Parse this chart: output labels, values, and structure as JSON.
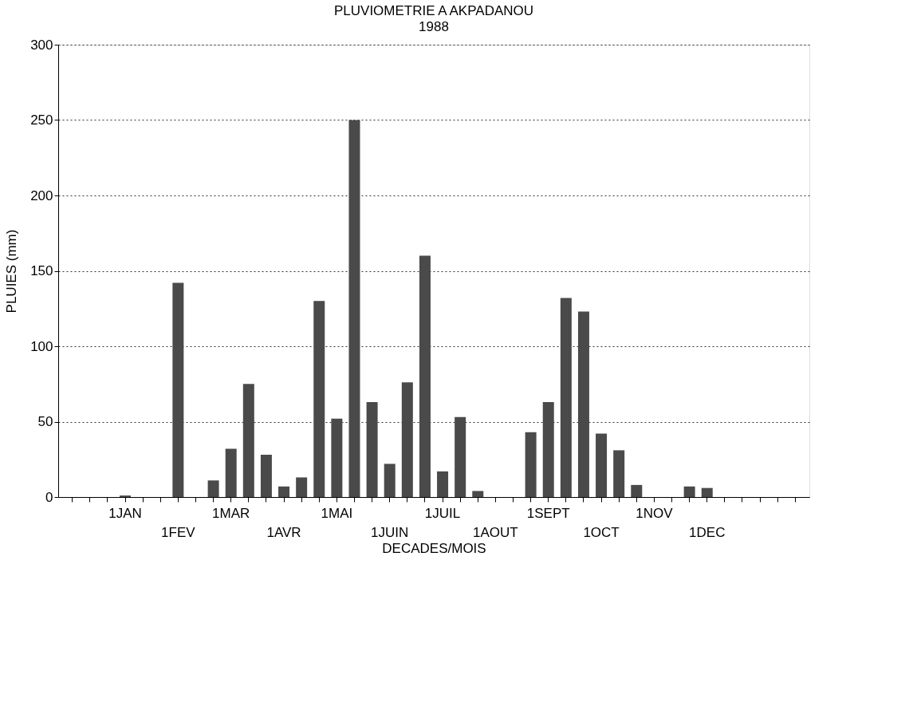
{
  "chart_data": {
    "type": "bar",
    "title": "PLUVIOMETRIE A AKPADANOU",
    "subtitle": "1988",
    "xlabel": "DECADES/MOIS",
    "ylabel": "PLUIES (mm)",
    "categories": [
      "1JAN",
      null,
      null,
      "1FEV",
      null,
      null,
      "1MAR",
      null,
      null,
      "1AVR",
      null,
      null,
      "1MAI",
      null,
      null,
      "1JUIN",
      null,
      null,
      "1JUIL",
      null,
      null,
      "1AOUT",
      null,
      null,
      "1SEPT",
      null,
      null,
      "1OCT",
      null,
      null,
      "1NOV",
      null,
      null,
      "1DEC",
      null,
      null
    ],
    "values": [
      1,
      0,
      0,
      142,
      0,
      11,
      32,
      75,
      28,
      7,
      13,
      130,
      52,
      250,
      63,
      22,
      76,
      160,
      17,
      53,
      4,
      0,
      0,
      43,
      63,
      132,
      123,
      42,
      31,
      8,
      0,
      0,
      7,
      6,
      0,
      0
    ],
    "color": "#4a4a4a",
    "ylim": [
      0,
      300
    ],
    "yticks": [
      0,
      50,
      100,
      150,
      200,
      250,
      300
    ],
    "grid": "y"
  }
}
